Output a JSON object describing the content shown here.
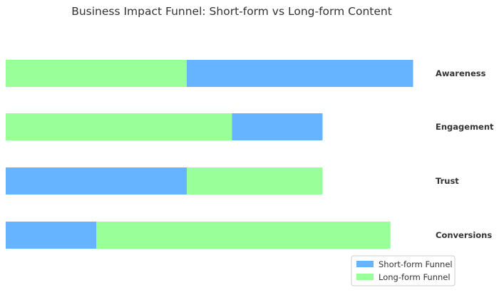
{
  "chart_data": {
    "type": "bar",
    "orientation": "horizontal",
    "title": "Business Impact Funnel: Short-form vs Long-form Content",
    "xlabel": "",
    "ylabel": "",
    "grid": false,
    "legend_position": "bottom-right",
    "xlim": [
      0,
      100
    ],
    "categories": [
      "Awareness",
      "Engagement",
      "Trust",
      "Conversions"
    ],
    "series": [
      {
        "name": "Short-form Funnel",
        "color": "#66b3ff",
        "values": [
          90,
          70,
          40,
          20
        ]
      },
      {
        "name": "Long-form Funnel",
        "color": "#99ff99",
        "values": [
          40,
          50,
          70,
          85
        ]
      }
    ]
  }
}
